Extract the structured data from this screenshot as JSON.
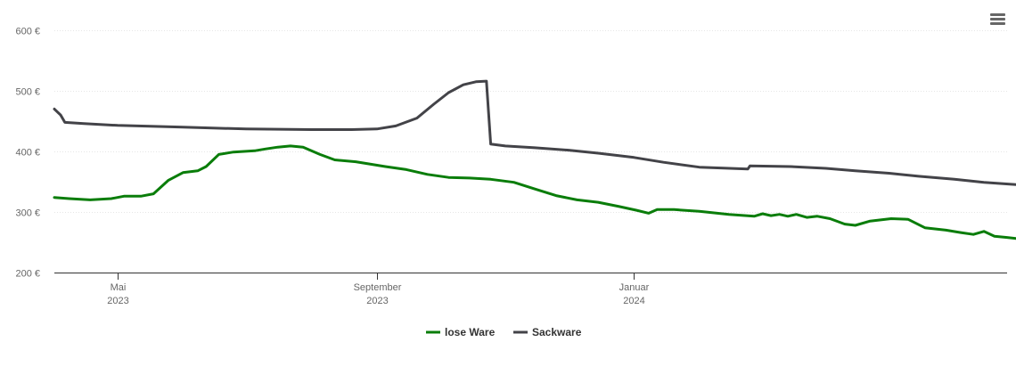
{
  "chart_data": {
    "type": "line",
    "title": "",
    "xlabel": "",
    "ylabel": "",
    "x_range": [
      "2023-04-01",
      "2024-06-26"
    ],
    "ylim": [
      200,
      600
    ],
    "y_ticks": [
      {
        "value": 200,
        "label": "200 €"
      },
      {
        "value": 300,
        "label": "300 €"
      },
      {
        "value": 400,
        "label": "400 €"
      },
      {
        "value": 500,
        "label": "500 €"
      },
      {
        "value": 600,
        "label": "600 €"
      }
    ],
    "x_ticks": [
      {
        "date": "2023-05-01",
        "label": "Mai",
        "sublabel": "2023"
      },
      {
        "date": "2023-09-01",
        "label": "September",
        "sublabel": "2023"
      },
      {
        "date": "2024-01-01",
        "label": "Januar",
        "sublabel": "2024"
      }
    ],
    "grid": true,
    "legend_position": "bottom",
    "series": [
      {
        "name": "lose Ware",
        "color": "#0a7d0a",
        "points": [
          [
            "2023-04-01",
            324
          ],
          [
            "2023-04-08",
            322
          ],
          [
            "2023-04-18",
            320
          ],
          [
            "2023-04-28",
            322
          ],
          [
            "2023-05-04",
            326
          ],
          [
            "2023-05-12",
            326
          ],
          [
            "2023-05-18",
            330
          ],
          [
            "2023-05-25",
            352
          ],
          [
            "2023-06-01",
            365
          ],
          [
            "2023-06-08",
            368
          ],
          [
            "2023-06-12",
            375
          ],
          [
            "2023-06-18",
            395
          ],
          [
            "2023-06-25",
            399
          ],
          [
            "2023-07-05",
            401
          ],
          [
            "2023-07-10",
            404
          ],
          [
            "2023-07-16",
            407
          ],
          [
            "2023-07-22",
            409
          ],
          [
            "2023-07-28",
            407
          ],
          [
            "2023-08-05",
            395
          ],
          [
            "2023-08-12",
            386
          ],
          [
            "2023-08-22",
            383
          ],
          [
            "2023-09-05",
            375
          ],
          [
            "2023-09-15",
            370
          ],
          [
            "2023-09-25",
            362
          ],
          [
            "2023-10-05",
            357
          ],
          [
            "2023-10-15",
            356
          ],
          [
            "2023-10-25",
            354
          ],
          [
            "2023-11-05",
            349
          ],
          [
            "2023-11-15",
            338
          ],
          [
            "2023-11-25",
            327
          ],
          [
            "2023-12-05",
            320
          ],
          [
            "2023-12-15",
            316
          ],
          [
            "2023-12-25",
            309
          ],
          [
            "2024-01-02",
            303
          ],
          [
            "2024-01-08",
            298
          ],
          [
            "2024-01-12",
            304
          ],
          [
            "2024-01-20",
            304
          ],
          [
            "2024-02-01",
            301
          ],
          [
            "2024-02-15",
            296
          ],
          [
            "2024-02-27",
            293
          ],
          [
            "2024-03-02",
            297
          ],
          [
            "2024-03-06",
            294
          ],
          [
            "2024-03-10",
            296
          ],
          [
            "2024-03-14",
            293
          ],
          [
            "2024-03-18",
            296
          ],
          [
            "2024-03-23",
            291
          ],
          [
            "2024-03-28",
            293
          ],
          [
            "2024-04-03",
            289
          ],
          [
            "2024-04-10",
            280
          ],
          [
            "2024-04-15",
            278
          ],
          [
            "2024-04-22",
            285
          ],
          [
            "2024-05-02",
            289
          ],
          [
            "2024-05-10",
            288
          ],
          [
            "2024-05-18",
            274
          ],
          [
            "2024-05-28",
            270
          ],
          [
            "2024-06-04",
            266
          ],
          [
            "2024-06-10",
            263
          ],
          [
            "2024-06-15",
            268
          ],
          [
            "2024-06-20",
            260
          ],
          [
            "2024-06-26",
            258
          ],
          [
            "2024-07-01",
            256
          ],
          [
            "2024-07-05",
            258
          ],
          [
            "2024-07-10",
            257
          ],
          [
            "2024-07-17",
            257
          ]
        ]
      },
      {
        "name": "Sackware",
        "color": "#434348",
        "points": [
          [
            "2023-04-01",
            470
          ],
          [
            "2023-04-04",
            460
          ],
          [
            "2023-04-06",
            448
          ],
          [
            "2023-04-15",
            446
          ],
          [
            "2023-05-01",
            443
          ],
          [
            "2023-06-01",
            440
          ],
          [
            "2023-07-01",
            437
          ],
          [
            "2023-08-01",
            436
          ],
          [
            "2023-08-20",
            436
          ],
          [
            "2023-09-01",
            437
          ],
          [
            "2023-09-10",
            442
          ],
          [
            "2023-09-20",
            455
          ],
          [
            "2023-09-28",
            478
          ],
          [
            "2023-10-05",
            497
          ],
          [
            "2023-10-12",
            510
          ],
          [
            "2023-10-18",
            515
          ],
          [
            "2023-10-23",
            516
          ],
          [
            "2023-10-25",
            412
          ],
          [
            "2023-11-01",
            409
          ],
          [
            "2023-11-15",
            406
          ],
          [
            "2023-12-01",
            402
          ],
          [
            "2023-12-15",
            397
          ],
          [
            "2024-01-01",
            390
          ],
          [
            "2024-01-15",
            382
          ],
          [
            "2024-02-01",
            374
          ],
          [
            "2024-02-24",
            371
          ],
          [
            "2024-02-25",
            376
          ],
          [
            "2024-03-15",
            375
          ],
          [
            "2024-04-01",
            372
          ],
          [
            "2024-04-15",
            368
          ],
          [
            "2024-05-01",
            364
          ],
          [
            "2024-05-15",
            359
          ],
          [
            "2024-06-01",
            354
          ],
          [
            "2024-06-15",
            349
          ],
          [
            "2024-07-01",
            345
          ],
          [
            "2024-07-17",
            345
          ]
        ]
      }
    ]
  }
}
